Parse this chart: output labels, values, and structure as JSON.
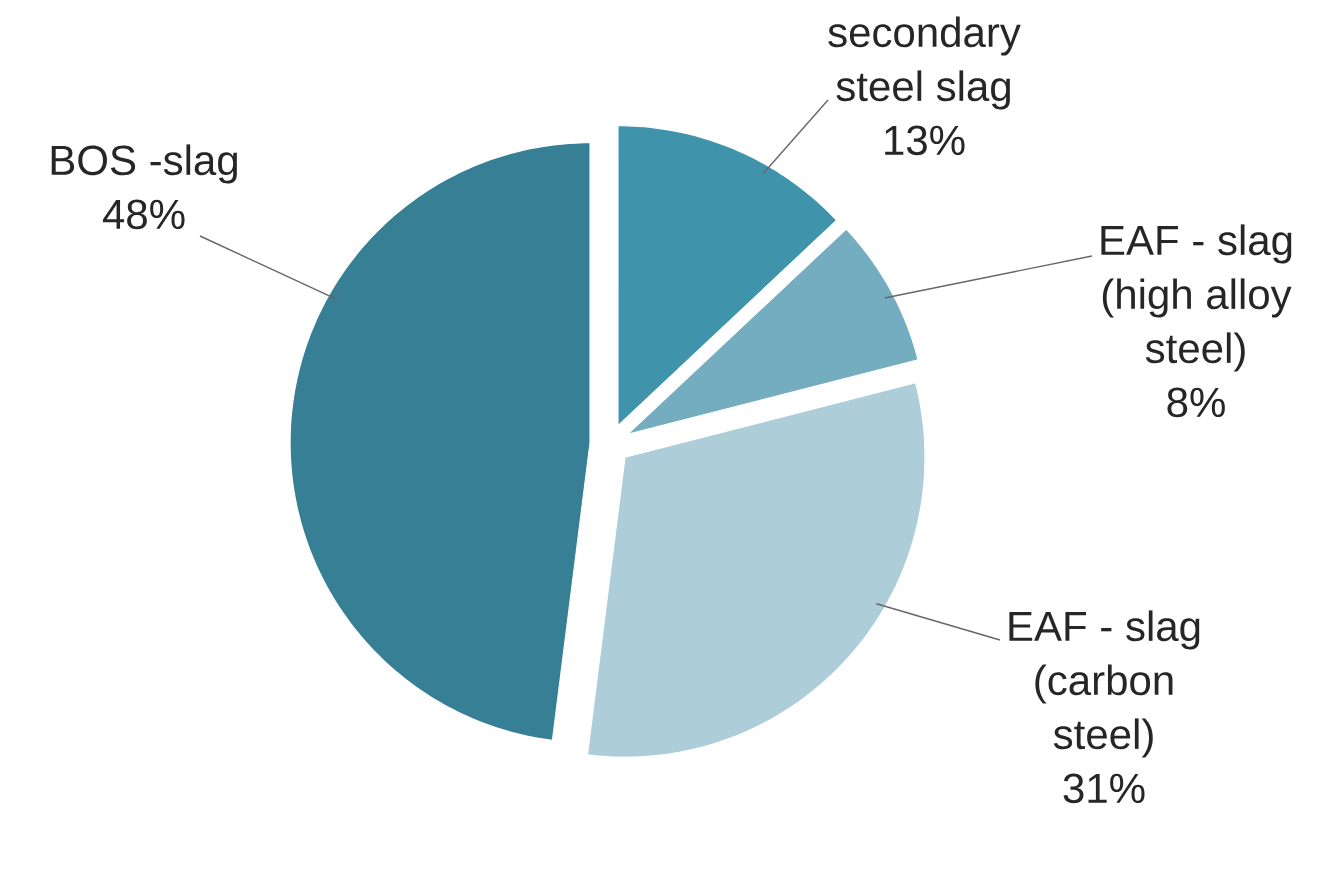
{
  "chart_data": {
    "type": "pie",
    "categories": [
      "secondary steel slag",
      "EAF - slag (high alloy steel)",
      "EAF - slag (carbon steel)",
      "BOS -slag"
    ],
    "values": [
      13,
      8,
      31,
      48
    ],
    "value_labels": [
      "13%",
      "8%",
      "31%",
      "48%"
    ],
    "colors": [
      "#3f93ab",
      "#74adc0",
      "#adcdd9",
      "#367f95"
    ]
  }
}
